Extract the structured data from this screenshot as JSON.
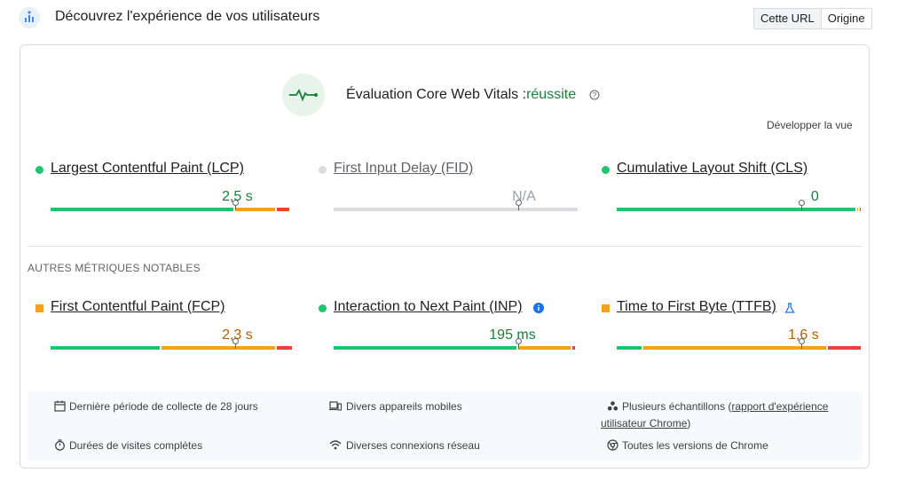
{
  "header": {
    "title": "Découvrez l'expérience de vos utilisateurs",
    "icon": "crux-icon",
    "toggle": {
      "this_url": "Cette URL",
      "origin": "Origine"
    }
  },
  "assessment": {
    "label": "Évaluation Core Web Vitals :",
    "result": "réussite",
    "expand_label": "Développer la vue"
  },
  "core_metrics": [
    {
      "name": "Largest Contentful Paint (LCP)",
      "value": "2,5 s",
      "status": "good",
      "segments": [
        0.75,
        0.17,
        0.06
      ],
      "marker": 0.75
    },
    {
      "name": "First Input Delay (FID)",
      "value": "N/A",
      "status": "na",
      "segments": [
        1.0
      ],
      "marker": 0.75
    },
    {
      "name": "Cumulative Layout Shift (CLS)",
      "value": "0",
      "status": "good",
      "segments": [
        0.98,
        0.01,
        0.01
      ],
      "marker": 0.75
    }
  ],
  "other_title": "AUTRES MÉTRIQUES NOTABLES",
  "other_metrics": [
    {
      "name": "First Contentful Paint (FCP)",
      "value": "2,3 s",
      "status": "average",
      "segments": [
        0.45,
        0.47,
        0.07
      ],
      "marker": 0.75
    },
    {
      "name": "Interaction to Next Paint (INP)",
      "value": "195 ms",
      "status": "good",
      "segments": [
        0.75,
        0.22,
        0.02
      ],
      "marker": 0.75
    },
    {
      "name": "Time to First Byte (TTFB)",
      "value": "1,6 s",
      "status": "average",
      "segments": [
        0.11,
        0.75,
        0.14
      ],
      "marker": 0.75
    }
  ],
  "footer": {
    "collection": "Dernière période de collecte de 28 jours",
    "devices": "Divers appareils mobiles",
    "samples_prefix": "Plusieurs échantillons (",
    "samples_link": "rapport d'expérience",
    "samples_line2_link": "utilisateur Chrome",
    "samples_suffix": ")",
    "durations": "Durées de visites complètes",
    "connections": "Diverses connexions réseau",
    "versions": "Toutes les versions de Chrome"
  },
  "colors": {
    "good": "#1ec46e",
    "average": "#f4a21c",
    "poor": "#ea4335",
    "na": "#dadce0"
  }
}
